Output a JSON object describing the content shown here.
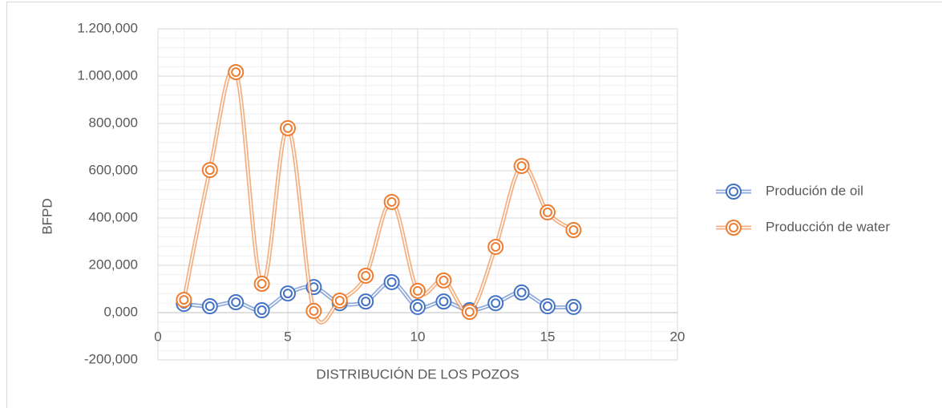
{
  "chart_data": {
    "type": "scatter_smooth",
    "y_label": "BFPD",
    "x_label": "DISTRIBUCIÓN DE LOS POZOS",
    "x": [
      1,
      2,
      3,
      4,
      5,
      6,
      7,
      8,
      9,
      10,
      11,
      12,
      13,
      14,
      15,
      16
    ],
    "series": [
      {
        "name": "Produción de oil",
        "color": "#4472c4",
        "values": [
          37,
          27,
          44,
          10,
          81,
          108,
          40,
          47,
          129,
          24,
          47,
          10,
          40,
          85,
          27,
          24
        ]
      },
      {
        "name": "Producción de water",
        "color": "#ed7d31",
        "values": [
          54,
          603,
          1017,
          122,
          780,
          7,
          51,
          156,
          468,
          92,
          136,
          3,
          278,
          620,
          424,
          349
        ]
      }
    ],
    "xlim": [
      0,
      20
    ],
    "xticks": [
      0,
      5,
      10,
      15,
      20
    ],
    "ylim": [
      -200,
      1200
    ],
    "yticks": [
      {
        "value": -200,
        "label": "-200,000"
      },
      {
        "value": 0,
        "label": "0,000"
      },
      {
        "value": 200,
        "label": "200,000"
      },
      {
        "value": 400,
        "label": "400,000"
      },
      {
        "value": 600,
        "label": "600,000"
      },
      {
        "value": 800,
        "label": "800,000"
      },
      {
        "value": 1000,
        "label": "1.000,000"
      },
      {
        "value": 1200,
        "label": "1.200,000"
      }
    ],
    "grid": true,
    "minor_grid": true,
    "legend": "right"
  }
}
